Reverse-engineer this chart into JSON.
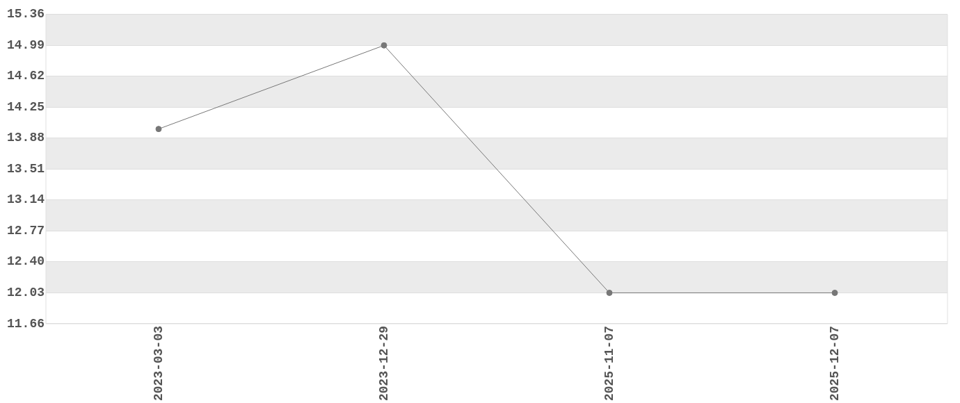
{
  "chart_data": {
    "type": "line",
    "categories": [
      "2023-03-03",
      "2023-12-29",
      "2025-11-07",
      "2025-12-07"
    ],
    "series": [
      {
        "color": "#777777",
        "values": [
          13.99,
          14.99,
          12.03,
          12.03
        ]
      }
    ],
    "ylim": [
      11.66,
      15.36
    ],
    "yticks": [
      11.66,
      12.03,
      {
        "value": 12.4,
        "label": "12.40"
      },
      12.77,
      13.14,
      13.51,
      13.88,
      14.25,
      14.62,
      14.99,
      15.36
    ],
    "grid": "y",
    "marker": "circle",
    "line_style": "solid",
    "legend": false
  }
}
